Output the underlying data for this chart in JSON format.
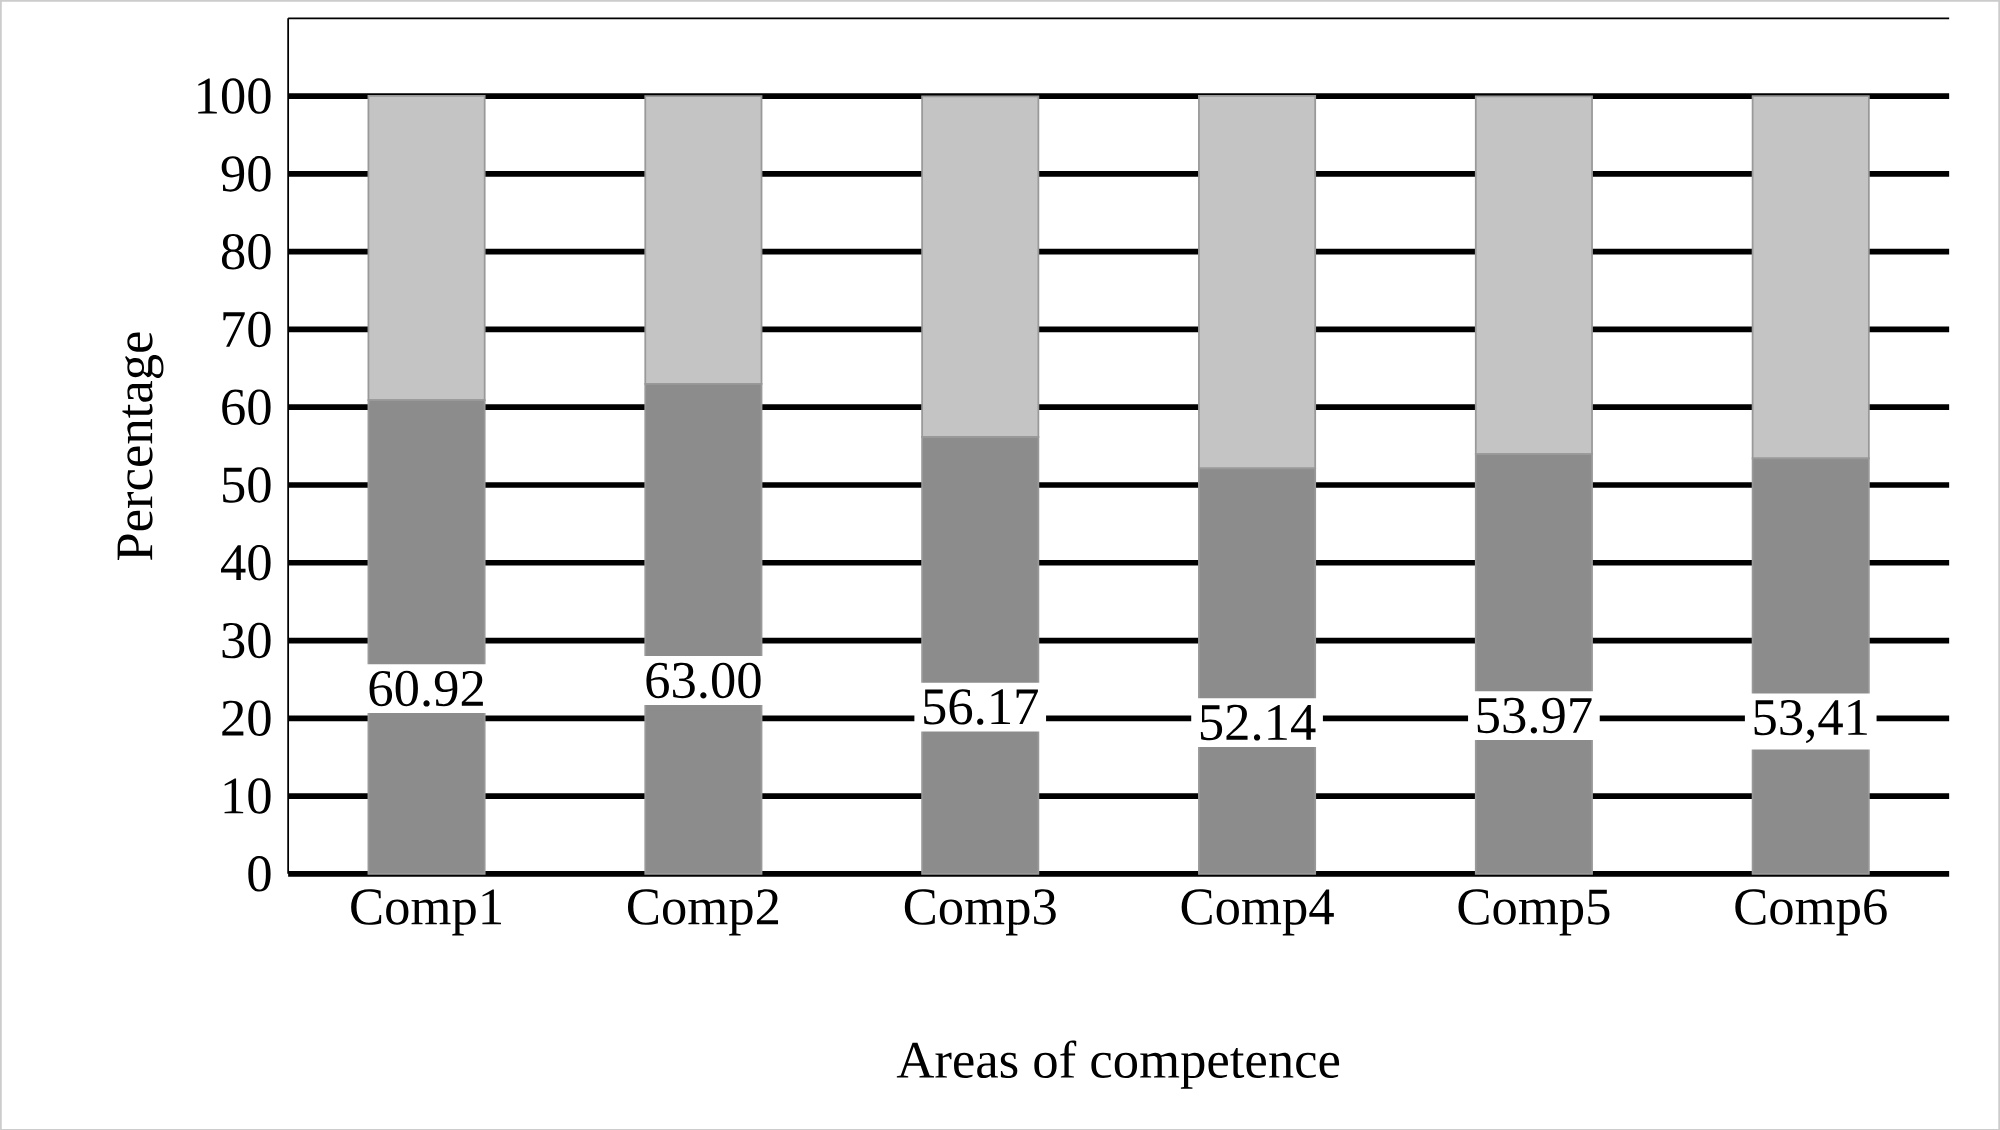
{
  "chart_data": {
    "type": "bar",
    "stacked": true,
    "xlabel": "Areas of competence",
    "ylabel": "Percentage",
    "categories": [
      "Comp1",
      "Comp2",
      "Comp3",
      "Comp4",
      "Comp5",
      "Comp6"
    ],
    "series": [
      {
        "color": "#8c8c8c",
        "values": [
          60.92,
          63.0,
          56.17,
          52.14,
          53.97,
          53.41
        ],
        "value_labels": [
          "60.92",
          "63.00",
          "56.17",
          "52.14",
          "53.97",
          "53,41"
        ]
      },
      {
        "color": "#c4c4c4",
        "values": [
          39.1,
          37.0,
          43.8,
          47.9,
          46.0,
          46.6
        ]
      }
    ],
    "ylim": [
      0,
      110
    ],
    "yticks": [
      0,
      10,
      20,
      30,
      40,
      50,
      60,
      70,
      80,
      90,
      100
    ],
    "grid": "y"
  }
}
